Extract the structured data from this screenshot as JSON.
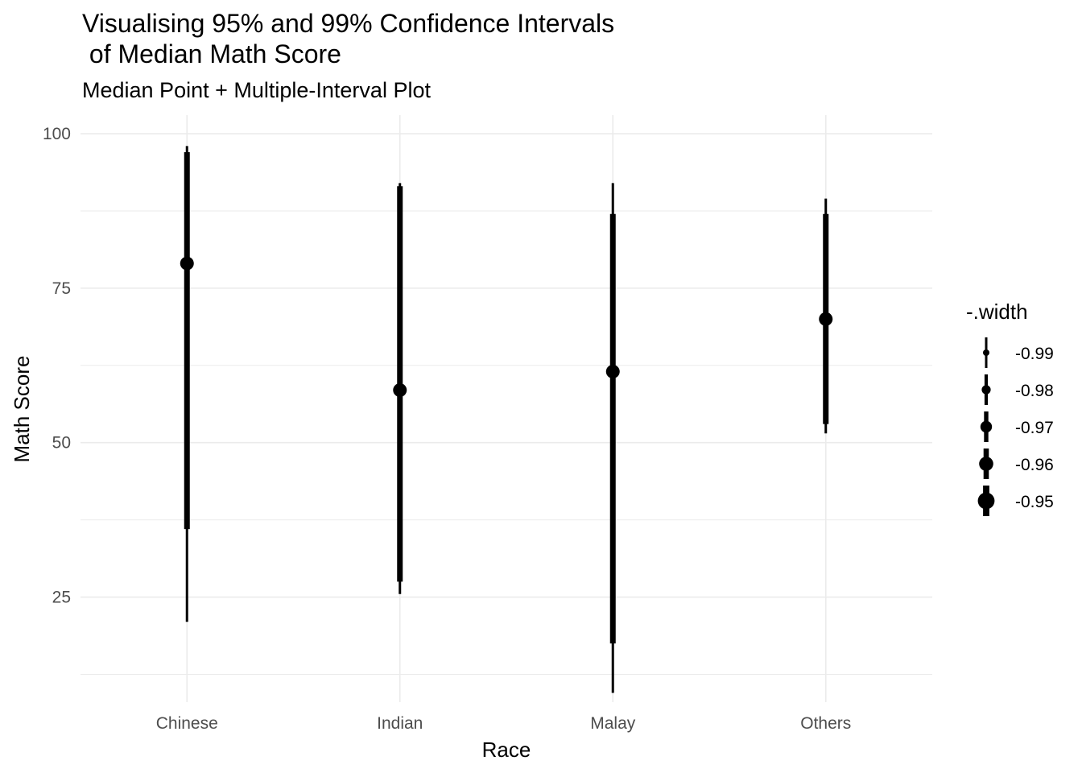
{
  "chart_data": {
    "type": "pointinterval",
    "title": "Visualising 95% and 99% Confidence Intervals\n of Median Math Score",
    "subtitle": "Median Point + Multiple-Interval Plot",
    "xlabel": "Race",
    "ylabel": "Math Score",
    "categories": [
      "Chinese",
      "Indian",
      "Malay",
      "Others"
    ],
    "ylim": [
      8,
      103
    ],
    "yticks": [
      25,
      50,
      75,
      100
    ],
    "grid": true,
    "median": [
      79,
      58.5,
      61.5,
      70
    ],
    "intervals": [
      {
        "width": 0.95,
        "lower": [
          36,
          27.5,
          17.5,
          53
        ],
        "upper": [
          97,
          91.5,
          87,
          87
        ]
      },
      {
        "width": 0.99,
        "lower": [
          21,
          25.5,
          9.5,
          51.5
        ],
        "upper": [
          98,
          92,
          92,
          89.5
        ]
      }
    ],
    "legend": {
      "title": "-.width",
      "position": "right",
      "entries": [
        "-0.99",
        "-0.98",
        "-0.97",
        "-0.96",
        "-0.95"
      ]
    },
    "color": "#000000",
    "grid_color": "#ebebeb"
  }
}
